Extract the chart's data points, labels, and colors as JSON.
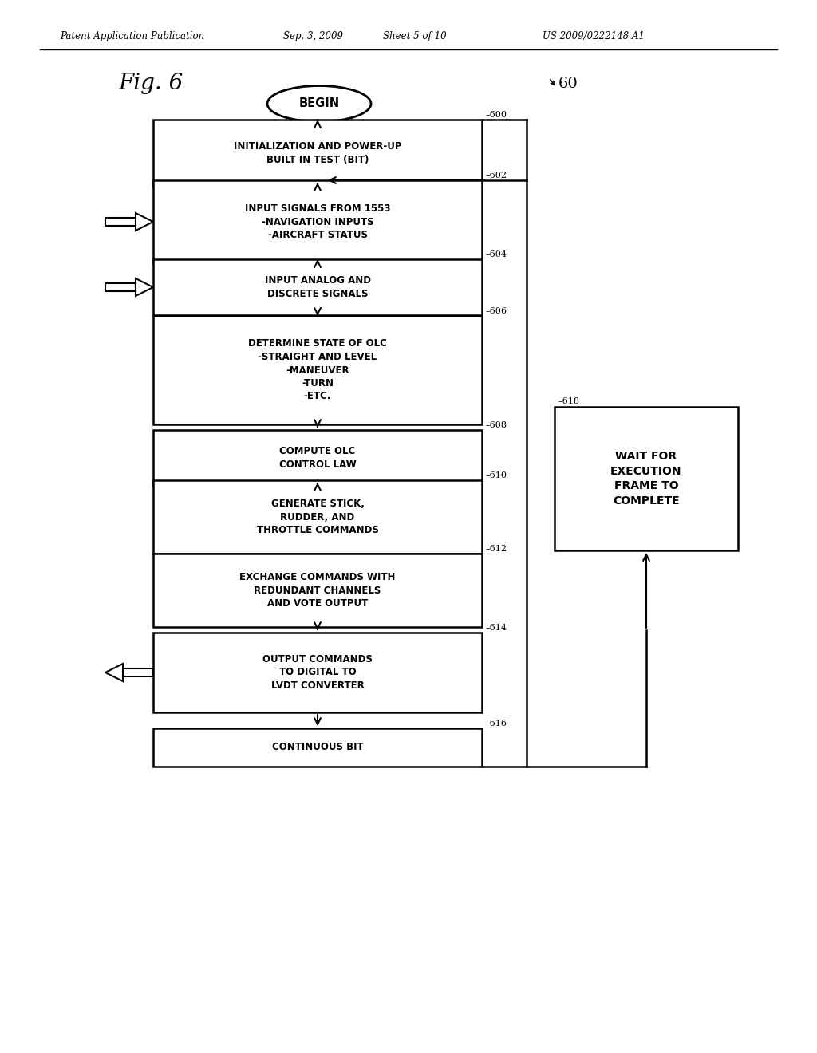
{
  "patent_header": "Patent Application Publication",
  "patent_date": "Sep. 3, 2009",
  "patent_sheet": "Sheet 5 of 10",
  "patent_number": "US 2009/0222148 A1",
  "fig_label": "Fig. 6",
  "begin_label": "BEGIN",
  "flow_ref": "60",
  "boxes": [
    {
      "tag": "600",
      "label": "INITIALIZATION AND POWER-UP\nBUILT IN TEST (BIT)"
    },
    {
      "tag": "602",
      "label": "INPUT SIGNALS FROM 1553\n-NAVIGATION INPUTS\n-AIRCRAFT STATUS"
    },
    {
      "tag": "604",
      "label": "INPUT ANALOG AND\nDISCRETE SIGNALS"
    },
    {
      "tag": "606",
      "label": "DETERMINE STATE OF OLC\n-STRAIGHT AND LEVEL\n-MANEUVER\n-TURN\n-ETC."
    },
    {
      "tag": "608",
      "label": "COMPUTE OLC\nCONTROL LAW"
    },
    {
      "tag": "610",
      "label": "GENERATE STICK,\nRUDDER, AND\nTHROTTLE COMMANDS"
    },
    {
      "tag": "612",
      "label": "EXCHANGE COMMANDS WITH\nREDUNDANT CHANNELS\nAND VOTE OUTPUT"
    },
    {
      "tag": "614",
      "label": "OUTPUT COMMANDS\nTO DIGITAL TO\nLVDT CONVERTER"
    },
    {
      "tag": "616",
      "label": "CONTINUOUS BIT"
    }
  ],
  "side_box": {
    "tag": "618",
    "label": "WAIT FOR\nEXECUTION\nFRAME TO\nCOMPLETE"
  },
  "background_color": "#ffffff"
}
